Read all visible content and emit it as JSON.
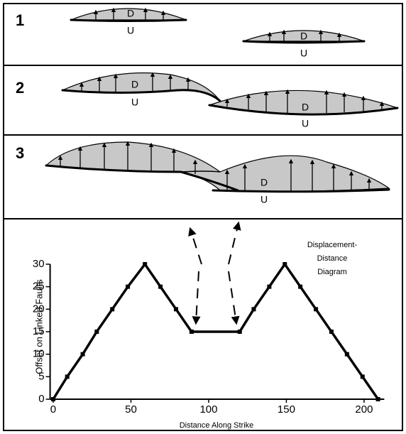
{
  "panels": [
    {
      "label": "1",
      "blocks": [
        {
          "top": "D",
          "bottom": "U"
        },
        {
          "top": "D",
          "bottom": "U"
        }
      ]
    },
    {
      "label": "2",
      "blocks": [
        {
          "top": "D",
          "bottom": "U"
        },
        {
          "top": "D",
          "bottom": "U"
        }
      ]
    },
    {
      "label": "3",
      "blocks": [
        {
          "top": "D",
          "bottom": "U"
        }
      ]
    }
  ],
  "chart_data": {
    "type": "line",
    "title_lines": [
      "Displacement-",
      "Distance",
      "Diagram"
    ],
    "x_label": "Distance Along Strike",
    "y_label": "Offset on Linked Faults",
    "x": [
      0,
      9,
      19,
      28,
      38,
      48,
      59,
      69,
      79,
      89,
      120,
      129,
      139,
      149,
      159,
      169,
      179,
      189,
      199,
      209
    ],
    "series": [
      {
        "color": "#000000",
        "values": [
          0,
          5,
          10,
          15,
          20,
          25,
          30,
          25,
          20,
          15,
          15,
          20,
          25,
          30,
          25,
          20,
          15,
          10,
          5,
          0
        ]
      }
    ],
    "xlim": [
      -2,
      213
    ],
    "ylim": [
      0,
      32
    ],
    "xticks": [
      0,
      50,
      100,
      150,
      200
    ],
    "yticks": [
      0,
      5,
      10,
      15,
      20,
      25,
      30
    ]
  }
}
